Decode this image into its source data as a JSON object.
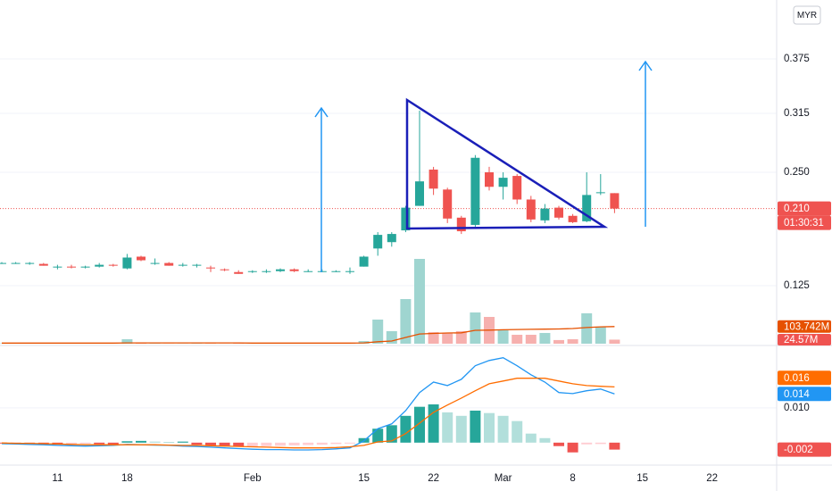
{
  "chart_data": [
    {
      "type": "candlestick",
      "categories": [
        null,
        null,
        null,
        null,
        "11",
        null,
        null,
        null,
        null,
        "18",
        null,
        null,
        null,
        null,
        null,
        null,
        null,
        null,
        "Feb",
        null,
        null,
        null,
        null,
        null,
        null,
        null,
        "15",
        null,
        null,
        null,
        null,
        "22",
        null,
        null,
        null,
        null,
        "Mar",
        null,
        null,
        null,
        null,
        "8",
        null,
        null,
        null,
        null,
        "15",
        null,
        null,
        null,
        null,
        "22",
        null,
        null,
        null,
        null
      ],
      "open": [
        0.15,
        0.15,
        0.15,
        0.149,
        0.146,
        0.146,
        0.145,
        0.146,
        0.148,
        0.144,
        0.157,
        0.15,
        0.15,
        0.148,
        0.148,
        0.145,
        0.143,
        0.14,
        0.141,
        0.141,
        0.141,
        0.143,
        0.141,
        0.141,
        0.141,
        0.141,
        0.146,
        0.166,
        0.173,
        0.186,
        0.213,
        0.253,
        0.231,
        0.2,
        0.192,
        0.25,
        0.234,
        0.246,
        0.22,
        0.197,
        0.211,
        0.202,
        0.196,
        0.227,
        0.227,
        null,
        null,
        null,
        null,
        null,
        null,
        null,
        null,
        null,
        null,
        null
      ],
      "high": [
        0.151,
        0.151,
        0.151,
        0.15,
        0.148,
        0.148,
        0.147,
        0.15,
        0.149,
        0.16,
        0.158,
        0.155,
        0.151,
        0.15,
        0.149,
        0.147,
        0.144,
        0.142,
        0.142,
        0.143,
        0.144,
        0.144,
        0.143,
        0.143,
        0.142,
        0.145,
        0.158,
        0.184,
        0.184,
        0.213,
        0.318,
        0.256,
        0.233,
        0.202,
        0.269,
        0.256,
        0.25,
        0.248,
        0.224,
        0.215,
        0.213,
        0.204,
        0.25,
        0.248,
        0.227,
        null,
        null,
        null,
        null,
        null,
        null,
        null,
        null,
        null,
        null,
        null
      ],
      "low": [
        0.149,
        0.149,
        0.148,
        0.147,
        0.143,
        0.144,
        0.144,
        0.145,
        0.146,
        0.143,
        0.152,
        0.148,
        0.147,
        0.146,
        0.145,
        0.14,
        0.141,
        0.138,
        0.139,
        0.139,
        0.14,
        0.14,
        0.14,
        0.14,
        0.14,
        0.138,
        0.146,
        0.158,
        0.168,
        0.184,
        0.213,
        0.225,
        0.194,
        0.182,
        0.19,
        0.23,
        0.22,
        0.215,
        0.195,
        0.194,
        0.198,
        0.194,
        0.195,
        0.225,
        0.205,
        null,
        null,
        null,
        null,
        null,
        null,
        null,
        null,
        null,
        null,
        null
      ],
      "close": [
        0.15,
        0.15,
        0.15,
        0.147,
        0.146,
        0.145,
        0.146,
        0.148,
        0.147,
        0.156,
        0.153,
        0.15,
        0.147,
        0.148,
        0.148,
        0.144,
        0.142,
        0.138,
        0.141,
        0.141,
        0.143,
        0.141,
        0.141,
        0.141,
        0.141,
        0.141,
        0.157,
        0.181,
        0.182,
        0.211,
        0.24,
        0.232,
        0.199,
        0.185,
        0.266,
        0.234,
        0.244,
        0.22,
        0.198,
        0.21,
        0.2,
        0.195,
        0.225,
        0.228,
        0.21,
        null,
        null,
        null,
        null,
        null,
        null,
        null,
        null,
        null,
        null,
        null
      ],
      "up_color": "#26a69a",
      "down_color": "#ef5350",
      "ylim": [
        0.061,
        0.44
      ],
      "yticks": [
        0.375,
        0.315,
        {
          "value": 0.25,
          "label": "0.250"
        },
        0.125
      ],
      "grid": true,
      "last_label": "0.210",
      "countdown": "01:30:31",
      "currency": "MYR"
    },
    {
      "type": "bar",
      "values": [
        2,
        1,
        2,
        3,
        2,
        1,
        2,
        2,
        1,
        27,
        4,
        2,
        1,
        1,
        2,
        2,
        1,
        3,
        1,
        1,
        1,
        2,
        1,
        1,
        2,
        3,
        16,
        146,
        76,
        270,
        513,
        70,
        65,
        76,
        189,
        162,
        81,
        54,
        54,
        65,
        22,
        27,
        184,
        103,
        24.57,
        null,
        null,
        null,
        null,
        null,
        null,
        null,
        null,
        null,
        null,
        null
      ],
      "up_color": "#9fd5d0",
      "down_color": "#f6b0ae",
      "ylim": [
        0,
        594
      ],
      "last_label": "24.57M",
      "ma": {
        "color": "#e65100",
        "values": [
          4,
          4,
          4,
          4,
          4,
          4,
          4,
          4,
          4,
          5,
          5,
          5,
          5,
          5,
          5,
          5,
          5,
          5,
          4,
          4,
          4,
          4,
          4,
          4,
          4,
          4,
          5,
          12,
          16,
          38,
          59,
          62,
          65,
          66,
          81,
          82,
          84,
          86,
          87,
          88,
          89,
          92,
          98,
          102,
          103.742,
          null,
          null,
          null,
          null,
          null,
          null,
          null,
          null,
          null,
          null,
          null
        ],
        "last_label": "103.742M"
      }
    },
    {
      "type": "macd",
      "ylim": [
        -0.0062,
        0.0274
      ],
      "yticks": [
        {
          "value": 0.01,
          "label": "0.010"
        }
      ],
      "macd": {
        "color": "#2196f3",
        "values": [
          -0.0003,
          -0.0004,
          -0.0005,
          -0.0006,
          -0.0008,
          -0.0009,
          -0.001,
          -0.0009,
          -0.0008,
          -0.0005,
          -0.0006,
          -0.0007,
          -0.0008,
          -0.001,
          -0.0011,
          -0.0013,
          -0.0015,
          -0.0017,
          -0.0019,
          -0.002,
          -0.002,
          -0.0021,
          -0.0021,
          -0.002,
          -0.0018,
          -0.0015,
          0.0005,
          0.004,
          0.0054,
          0.0092,
          0.0144,
          0.0174,
          0.0164,
          0.0182,
          0.0221,
          0.0236,
          0.0244,
          0.0221,
          0.0195,
          0.0174,
          0.0144,
          0.0141,
          0.0149,
          0.0154,
          0.014,
          null,
          null,
          null,
          null,
          null,
          null,
          null,
          null,
          null,
          null,
          null
        ]
      },
      "signal": {
        "color": "#ff6d00",
        "values": [
          -0.0001,
          -0.0002,
          -0.0002,
          -0.0003,
          -0.0004,
          -0.0005,
          -0.0006,
          -0.0006,
          -0.0006,
          -0.0006,
          -0.0006,
          -0.0006,
          -0.0007,
          -0.0008,
          -0.0008,
          -0.0009,
          -0.001,
          -0.0011,
          -0.0012,
          -0.0013,
          -0.0014,
          -0.0015,
          -0.0015,
          -0.0015,
          -0.0014,
          -0.0012,
          -0.0008,
          0.0002,
          0.0005,
          0.0026,
          0.0056,
          0.0087,
          0.0108,
          0.0128,
          0.0149,
          0.0169,
          0.0177,
          0.0185,
          0.0185,
          0.0185,
          0.0177,
          0.0169,
          0.0164,
          0.0162,
          0.016,
          null,
          null,
          null,
          null,
          null,
          null,
          null,
          null,
          null,
          null,
          null
        ]
      },
      "histogram": {
        "colors": {
          "up_strong": "#26a69a",
          "up_weak": "#b2dfdb",
          "down_strong": "#ef5350",
          "down_weak": "#ffcdd2"
        },
        "values": [
          -0.0002,
          -0.0002,
          -0.0003,
          -0.0005,
          -0.0006,
          -0.0004,
          -0.0003,
          -0.0004,
          -0.0007,
          0.0004,
          0.0005,
          0.0003,
          0.0002,
          0.0003,
          -0.0006,
          -0.0008,
          -0.0009,
          -0.0012,
          -0.0011,
          -0.001,
          -0.0009,
          -0.0008,
          -0.0007,
          -0.0006,
          -0.0004,
          -0.0002,
          0.0013,
          0.004,
          0.005,
          0.0077,
          0.0103,
          0.011,
          0.0087,
          0.0077,
          0.0092,
          0.0085,
          0.0077,
          0.0062,
          0.0026,
          0.0013,
          -0.001,
          -0.0028,
          -0.0005,
          -0.0004,
          -0.002,
          null,
          null,
          null,
          null,
          null,
          null,
          null,
          null,
          null,
          null,
          null
        ]
      }
    }
  ]
}
